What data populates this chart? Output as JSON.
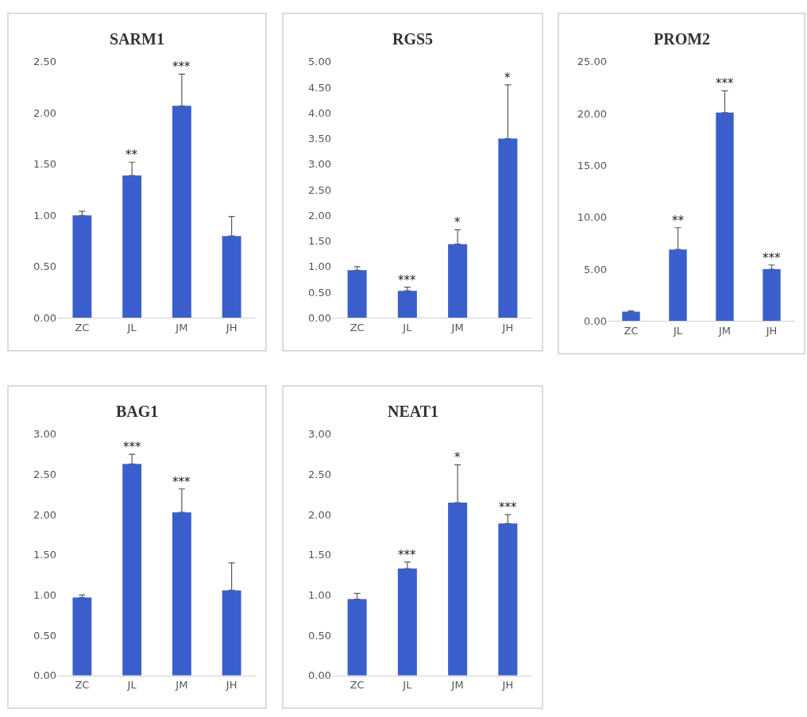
{
  "chart_data": [
    {
      "type": "bar",
      "title": "SARM1",
      "categories": [
        "ZC",
        "JL",
        "JM",
        "JH"
      ],
      "values": [
        1.0,
        1.39,
        2.07,
        0.8
      ],
      "color": "#3a5fcd",
      "errors": [
        [
          1.0,
          1.04
        ],
        [
          1.39,
          1.52
        ],
        [
          2.07,
          2.38
        ],
        [
          0.8,
          0.99
        ]
      ],
      "ylim": [
        0,
        2.5
      ],
      "yticks": [
        {
          "value": 0,
          "label": "0.00"
        },
        {
          "value": 0.5,
          "label": "0.50"
        },
        {
          "value": 1,
          "label": "1.00"
        },
        {
          "value": 1.5,
          "label": "1.50"
        },
        {
          "value": 2,
          "label": "2.00"
        },
        {
          "value": 2.5,
          "label": "2.50"
        }
      ],
      "annotations": [
        {
          "text": "**",
          "x": "JL",
          "y": 1.52
        },
        {
          "text": "***",
          "x": "JM",
          "y": 2.38
        }
      ]
    },
    {
      "type": "bar",
      "title": "RGS5",
      "categories": [
        "ZC",
        "JL",
        "JM",
        "JH"
      ],
      "values": [
        0.93,
        0.53,
        1.44,
        3.5
      ],
      "color": "#3a5fcd",
      "errors": [
        [
          0.93,
          1.0
        ],
        [
          0.53,
          0.6
        ],
        [
          1.44,
          1.72
        ],
        [
          3.5,
          4.55
        ]
      ],
      "ylim": [
        0,
        5
      ],
      "yticks": [
        {
          "value": 0,
          "label": "0.00"
        },
        {
          "value": 0.5,
          "label": "0.50"
        },
        {
          "value": 1,
          "label": "1.00"
        },
        {
          "value": 1.5,
          "label": "1.50"
        },
        {
          "value": 2,
          "label": "2.00"
        },
        {
          "value": 2.5,
          "label": "2.50"
        },
        {
          "value": 3,
          "label": "3.00"
        },
        {
          "value": 3.5,
          "label": "3.50"
        },
        {
          "value": 4,
          "label": "4.00"
        },
        {
          "value": 4.5,
          "label": "4.50"
        },
        {
          "value": 5,
          "label": "5.00"
        }
      ],
      "annotations": [
        {
          "text": "***",
          "x": "JL",
          "y": 0.6
        },
        {
          "text": "*",
          "x": "JM",
          "y": 1.72
        },
        {
          "text": "*",
          "x": "JH",
          "y": 4.55
        }
      ]
    },
    {
      "type": "bar",
      "title": "PROM2",
      "categories": [
        "ZC",
        "JL",
        "JM",
        "JH"
      ],
      "values": [
        0.9,
        6.9,
        20.1,
        5.0
      ],
      "color": "#3a5fcd",
      "errors": [
        [
          0.9,
          1.0
        ],
        [
          6.9,
          9.0
        ],
        [
          20.1,
          22.2
        ],
        [
          5.0,
          5.4
        ]
      ],
      "ylim": [
        0,
        25
      ],
      "yticks": [
        {
          "value": 0,
          "label": "0.00"
        },
        {
          "value": 5,
          "label": "5.00"
        },
        {
          "value": 10,
          "label": "10.00"
        },
        {
          "value": 15,
          "label": "15.00"
        },
        {
          "value": 20,
          "label": "20.00"
        },
        {
          "value": 25,
          "label": "25.00"
        }
      ],
      "annotations": [
        {
          "text": "**",
          "x": "JL",
          "y": 9.0
        },
        {
          "text": "***",
          "x": "JM",
          "y": 22.2
        },
        {
          "text": "***",
          "x": "JH",
          "y": 5.4
        }
      ]
    },
    {
      "type": "bar",
      "title": "BAG1",
      "categories": [
        "ZC",
        "JL",
        "JM",
        "JH"
      ],
      "values": [
        0.97,
        2.63,
        2.03,
        1.06
      ],
      "color": "#3a5fcd",
      "errors": [
        [
          0.97,
          1.0
        ],
        [
          2.63,
          2.75
        ],
        [
          2.03,
          2.32
        ],
        [
          1.06,
          1.4
        ]
      ],
      "ylim": [
        0,
        3
      ],
      "yticks": [
        {
          "value": 0,
          "label": "0.00"
        },
        {
          "value": 0.5,
          "label": "0.50"
        },
        {
          "value": 1,
          "label": "1.00"
        },
        {
          "value": 1.5,
          "label": "1.50"
        },
        {
          "value": 2,
          "label": "2.00"
        },
        {
          "value": 2.5,
          "label": "2.50"
        },
        {
          "value": 3,
          "label": "3.00"
        }
      ],
      "annotations": [
        {
          "text": "***",
          "x": "JL",
          "y": 2.75
        },
        {
          "text": "***",
          "x": "JM",
          "y": 2.32
        }
      ]
    },
    {
      "type": "bar",
      "title": "NEAT1",
      "categories": [
        "ZC",
        "JL",
        "JM",
        "JH"
      ],
      "values": [
        0.95,
        1.33,
        2.15,
        1.89
      ],
      "color": "#3a5fcd",
      "errors": [
        [
          0.95,
          1.02
        ],
        [
          1.33,
          1.41
        ],
        [
          2.15,
          2.62
        ],
        [
          1.89,
          2.0
        ]
      ],
      "ylim": [
        0,
        3
      ],
      "yticks": [
        {
          "value": 0,
          "label": "0.00"
        },
        {
          "value": 0.5,
          "label": "0.50"
        },
        {
          "value": 1,
          "label": "1.00"
        },
        {
          "value": 1.5,
          "label": "1.50"
        },
        {
          "value": 2,
          "label": "2.00"
        },
        {
          "value": 2.5,
          "label": "2.50"
        },
        {
          "value": 3,
          "label": "3.00"
        }
      ],
      "annotations": [
        {
          "text": "***",
          "x": "JL",
          "y": 1.41
        },
        {
          "text": "*",
          "x": "JM",
          "y": 2.62
        },
        {
          "text": "***",
          "x": "JH",
          "y": 2.0
        }
      ]
    }
  ]
}
